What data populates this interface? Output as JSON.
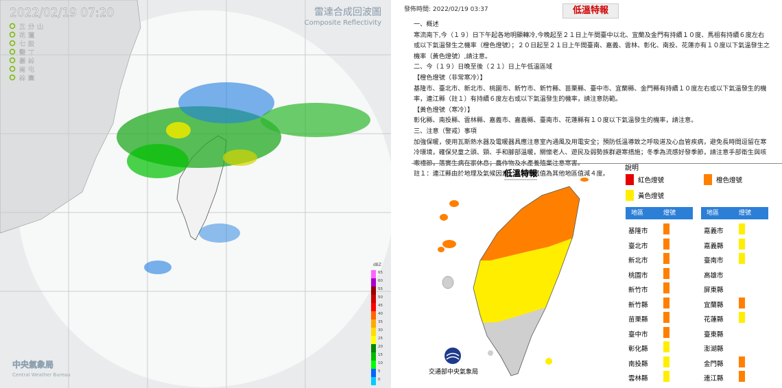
{
  "radar": {
    "timestamp": "2022/02/19  07:20",
    "title": "雷達合成回波圖",
    "subtitle": "Composite Reflectivity",
    "stations": [
      "五分山",
      "花蓮",
      "七股",
      "墾丁",
      "樹林",
      "南屯",
      "林園"
    ],
    "colorbar": {
      "unit": "dBZ",
      "ticks": [
        65,
        60,
        55,
        50,
        45,
        40,
        35,
        30,
        25,
        20,
        15,
        10,
        5,
        0
      ],
      "colors": [
        "#ff66ff",
        "#aa00cc",
        "#990000",
        "#cc0000",
        "#ff0000",
        "#ff6600",
        "#ffaa00",
        "#ffdd00",
        "#ffff00",
        "#008800",
        "#00bb00",
        "#00ff00",
        "#0066ff",
        "#00ccff"
      ]
    },
    "logo": {
      "name": "中央氣象局",
      "english": "Central Weather Bureau"
    }
  },
  "bulletin": {
    "issued": "發佈時間: 2022/02/19 03:37",
    "title": "低溫特報",
    "paragraphs": [
      "一、概述",
      "寒流南下,今（１９）日下午起各地明顯轉冷,今晚起至２１日上午間臺中以北、宜蘭及金門有持續１０度、馬祖有持續６度左右或以下氣溫發生之機率（橙色燈號）；２０日起至２１日上午間臺南、嘉義、雲林、彰化、南投、花蓮亦有１０度以下氣溫發生之機率（黃色燈號）,請注意。",
      "二、今（１９）日晚至後（２１）日上午低溫區域",
      "【橙色燈號（非常寒冷）】",
      "基隆市、臺北市、新北市、桃園市、新竹市、新竹縣、苗栗縣、臺中市、宜蘭縣、金門縣有持續１０度左右或以下氣溫發生的機率，連江縣（註１）有持續６度左右或以下氣溫發生的機率，請注意防範。",
      "【黃色燈號（寒冷）】",
      "彰化縣、南投縣、雲林縣、嘉義市、嘉義縣、臺南市、花蓮縣有１０度以下氣溫發生的機率，請注意。",
      "三、注意（警戒）事項",
      "加強保暖，使用瓦斯熱水器及電暖器具應注意室內通風及用電安全；預防低溫導致之呼吸道及心血管疾病，避免長時間逗留在寒冷環境，確保兒童之頭、頸、手和腳部溫暖，關懷老人、遊民及弱勢族群避寒措施；冬季為流感好發季節，請注意手部衛生與咳嗽禮節，落實生病在家休息；農作物及水產養殖業注意寒害。",
      "註１：連江縣由於地理及氣候因素，氣溫門檻值為其他地區值減４度。"
    ],
    "map_title": "低溫特報",
    "legend_title": "說明",
    "legend": [
      {
        "label": "紅色燈號",
        "color": "#e60000"
      },
      {
        "label": "橙色燈號",
        "color": "#ff8000"
      },
      {
        "label": "黃色燈號",
        "color": "#ffee00"
      }
    ],
    "table_headers": [
      "地區",
      "燈號"
    ],
    "regions_left": [
      {
        "name": "基隆市",
        "color": "#ff8000"
      },
      {
        "name": "臺北市",
        "color": "#ff8000"
      },
      {
        "name": "新北市",
        "color": "#ff8000"
      },
      {
        "name": "桃園市",
        "color": "#ff8000"
      },
      {
        "name": "新竹市",
        "color": "#ff8000"
      },
      {
        "name": "新竹縣",
        "color": "#ff8000"
      },
      {
        "name": "苗栗縣",
        "color": "#ff8000"
      },
      {
        "name": "臺中市",
        "color": "#ff8000"
      },
      {
        "name": "彰化縣",
        "color": "#ffee00"
      },
      {
        "name": "南投縣",
        "color": "#ffee00"
      },
      {
        "name": "雲林縣",
        "color": "#ffee00"
      }
    ],
    "regions_right": [
      {
        "name": "嘉義市",
        "color": "#ffee00"
      },
      {
        "name": "嘉義縣",
        "color": "#ffee00"
      },
      {
        "name": "臺南市",
        "color": "#ffee00"
      },
      {
        "name": "高雄市",
        "color": null
      },
      {
        "name": "屏東縣",
        "color": null
      },
      {
        "name": "宜蘭縣",
        "color": "#ff8000"
      },
      {
        "name": "花蓮縣",
        "color": "#ffee00"
      },
      {
        "name": "臺東縣",
        "color": null
      },
      {
        "name": "澎湖縣",
        "color": null
      },
      {
        "name": "金門縣",
        "color": "#ff8000"
      },
      {
        "name": "連江縣",
        "color": "#ff8000"
      }
    ],
    "footer": "交通部中央氣象局"
  }
}
